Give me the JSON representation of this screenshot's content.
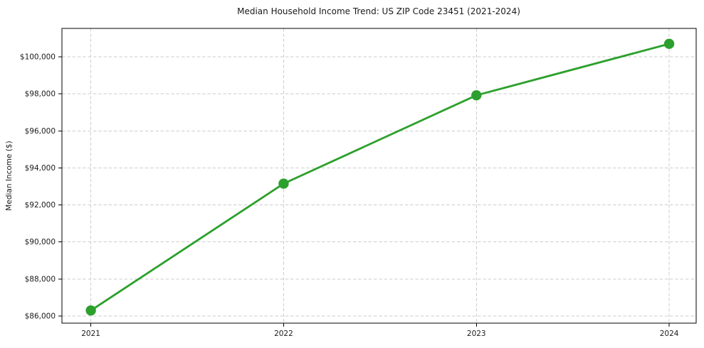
{
  "chart_data": {
    "type": "line",
    "title": "Median Household Income Trend: US ZIP Code 23451 (2021-2024)",
    "xlabel": "",
    "ylabel": "Median Income ($)",
    "x": [
      2021,
      2022,
      2023,
      2024
    ],
    "values": [
      86300,
      93150,
      97920,
      100700
    ],
    "xticks": [
      {
        "value": 2021,
        "label": "2021"
      },
      {
        "value": 2022,
        "label": "2022"
      },
      {
        "value": 2023,
        "label": "2023"
      },
      {
        "value": 2024,
        "label": "2024"
      }
    ],
    "yticks": [
      {
        "value": 86000,
        "label": "$86,000"
      },
      {
        "value": 88000,
        "label": "$88,000"
      },
      {
        "value": 90000,
        "label": "$90,000"
      },
      {
        "value": 92000,
        "label": "$92,000"
      },
      {
        "value": 94000,
        "label": "$94,000"
      },
      {
        "value": 96000,
        "label": "$96,000"
      },
      {
        "value": 98000,
        "label": "$98,000"
      },
      {
        "value": 100000,
        "label": "$100,000"
      }
    ],
    "xlim": [
      2020.85,
      2024.14
    ],
    "ylim": [
      85616,
      101533
    ],
    "grid": true,
    "legend": "none",
    "line_color": "#2ca02c",
    "marker": "o",
    "grid_color": "#cdcdcd",
    "axis_color": "#000000",
    "text_color": "#1a1a1a",
    "background": "#ffffff"
  }
}
